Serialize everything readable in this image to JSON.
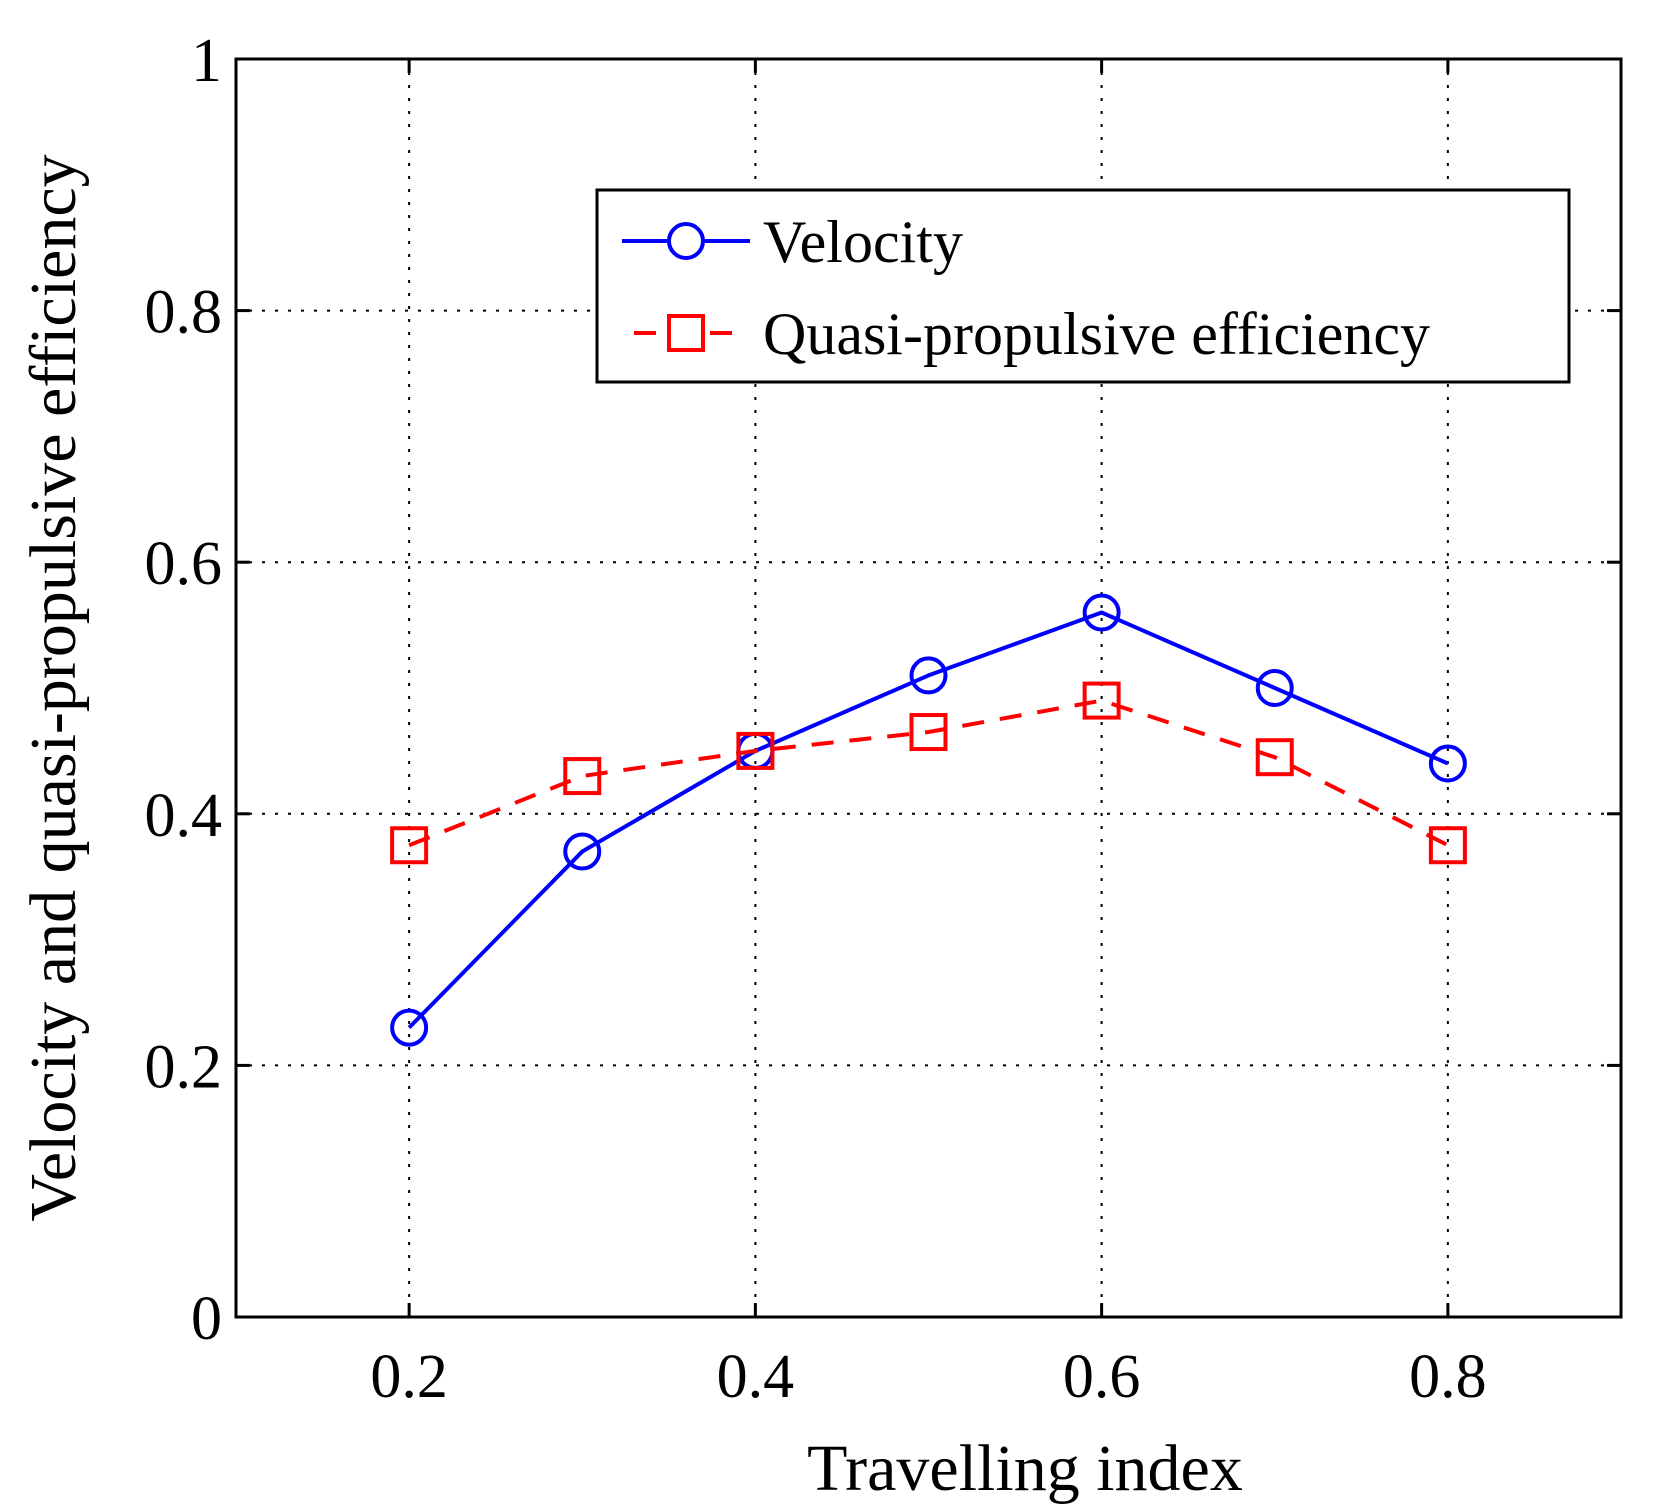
{
  "chart_data": {
    "type": "line",
    "title": "",
    "xlabel": "Travelling index",
    "ylabel": "Velocity and quasi-propulsive efficiency",
    "xlim": [
      0.1,
      0.9
    ],
    "ylim": [
      0,
      1
    ],
    "xticks": [
      0.2,
      0.4,
      0.6,
      0.8
    ],
    "xtick_labels": [
      "0.2",
      "0.4",
      "0.6",
      "0.8"
    ],
    "yticks": [
      0,
      0.2,
      0.4,
      0.6,
      0.8,
      1
    ],
    "ytick_labels": [
      "0",
      "0.2",
      "0.4",
      "0.6",
      "0.8",
      "1"
    ],
    "grid": true,
    "legend_position": "top-right",
    "x": [
      0.2,
      0.3,
      0.4,
      0.5,
      0.6,
      0.7,
      0.8
    ],
    "series": [
      {
        "name": "Velocity",
        "color": "#0000ff",
        "line_style": "solid",
        "marker": "circle",
        "values": [
          0.23,
          0.37,
          0.45,
          0.51,
          0.56,
          0.5,
          0.44
        ]
      },
      {
        "name": "Quasi-propulsive efficiency",
        "color": "#ff0000",
        "line_style": "dashed",
        "marker": "square",
        "values": [
          0.375,
          0.43,
          0.45,
          0.465,
          0.49,
          0.445,
          0.375
        ]
      }
    ]
  }
}
